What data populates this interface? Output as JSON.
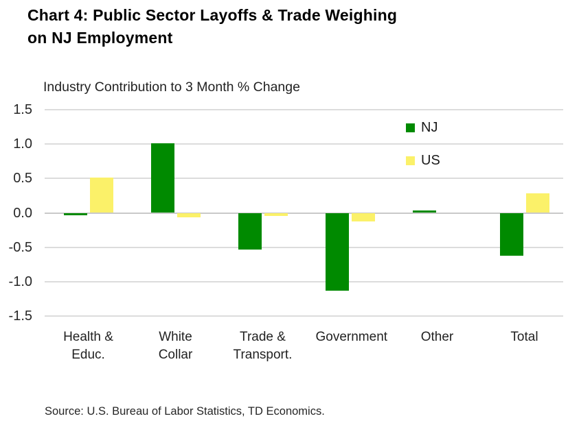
{
  "title": {
    "line1": "Chart 4: Public Sector Layoffs & Trade Weighing",
    "line2": "on NJ Employment"
  },
  "subtitle": "Industry Contribution to 3 Month % Change",
  "source": "Source: U.S. Bureau of Labor Statistics, TD Economics.",
  "colors": {
    "nj_green": "#008A00",
    "us_yellow": "#FBF169",
    "gridline": "#DCDCDC",
    "background": "#FFFFFF"
  },
  "chart_data": {
    "type": "bar",
    "title": "Industry Contribution to 3 Month % Change",
    "categories": [
      "Health & Educ.",
      "White Collar",
      "Trade & Transport.",
      "Government",
      "Other",
      "Total"
    ],
    "series": [
      {
        "name": "NJ",
        "color": "#008A00",
        "values": [
          -0.03,
          1.01,
          -0.53,
          -1.13,
          0.03,
          -0.62
        ]
      },
      {
        "name": "US",
        "color": "#FBF169",
        "values": [
          0.51,
          -0.06,
          -0.04,
          -0.12,
          0.0,
          0.28
        ]
      }
    ],
    "xlabel": "",
    "ylabel": "",
    "ylim": [
      -1.5,
      1.5
    ],
    "ytick_labels": [
      "1.5",
      "1.0",
      "0.5",
      "0.0",
      "-0.5",
      "-1.0",
      "-1.5"
    ],
    "grid": true,
    "legend_position": "top-right-inside"
  }
}
